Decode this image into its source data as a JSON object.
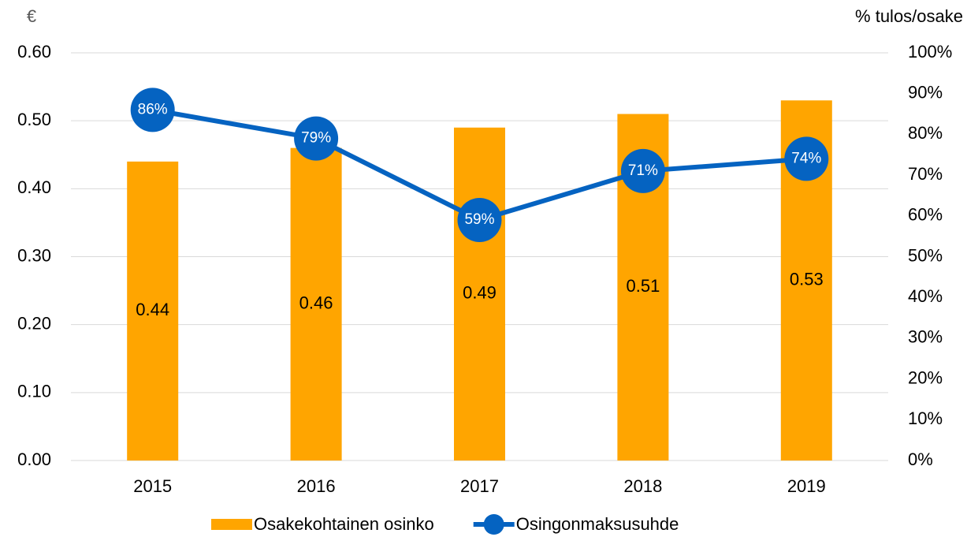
{
  "chart_data": {
    "type": "bar",
    "y_label": "€",
    "y2_label": "% tulos/osake",
    "categories": [
      "2015",
      "2016",
      "2017",
      "2018",
      "2019"
    ],
    "series": [
      {
        "name": "Osakekohtainen osinko",
        "type": "bar",
        "color": "#FFA500",
        "values": [
          0.44,
          0.46,
          0.49,
          0.51,
          0.53
        ]
      },
      {
        "name": "Osingonmaksusuhde",
        "type": "line",
        "axis": "y2",
        "color": "#0563C1",
        "values": [
          86,
          79,
          59,
          71,
          74
        ],
        "value_labels": [
          "86%",
          "79%",
          "59%",
          "71%",
          "74%"
        ]
      }
    ],
    "ylim": [
      0,
      0.6
    ],
    "yticks": [
      {
        "value": 0,
        "label": "0.00"
      },
      {
        "value": 0.1,
        "label": "0.10"
      },
      {
        "value": 0.2,
        "label": "0.20"
      },
      {
        "value": 0.3,
        "label": "0.30"
      },
      {
        "value": 0.4,
        "label": "0.40"
      },
      {
        "value": 0.5,
        "label": "0.50"
      },
      {
        "value": 0.6,
        "label": "0.60"
      }
    ],
    "y2lim": [
      0,
      100
    ],
    "y2ticks": [
      {
        "value": 0,
        "label": "0%"
      },
      {
        "value": 10,
        "label": "10%"
      },
      {
        "value": 20,
        "label": "20%"
      },
      {
        "value": 30,
        "label": "30%"
      },
      {
        "value": 40,
        "label": "40%"
      },
      {
        "value": 50,
        "label": "50%"
      },
      {
        "value": 60,
        "label": "60%"
      },
      {
        "value": 70,
        "label": "70%"
      },
      {
        "value": 80,
        "label": "80%"
      },
      {
        "value": 90,
        "label": "90%"
      },
      {
        "value": 100,
        "label": "100%"
      }
    ],
    "grid": true
  }
}
